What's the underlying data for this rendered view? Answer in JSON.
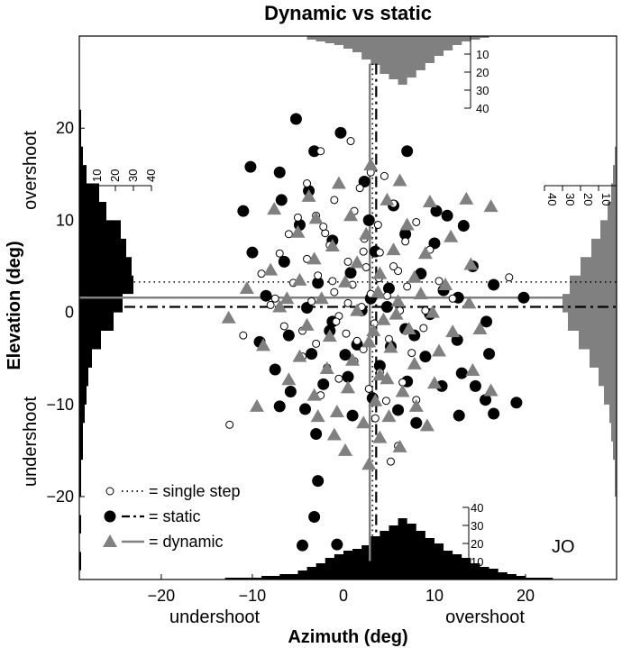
{
  "chart_data": {
    "type": "scatter",
    "title": "Dynamic vs static",
    "xlabel": "Azimuth (deg)",
    "ylabel": "Elevation (deg)",
    "x_side_labels": {
      "negative": "undershoot",
      "positive": "overshoot"
    },
    "y_side_labels": {
      "negative": "undershoot",
      "positive": "overshoot"
    },
    "xlim": [
      -29,
      30
    ],
    "ylim": [
      -29,
      30
    ],
    "x_ticks": [
      -20,
      -10,
      0,
      10,
      20
    ],
    "y_ticks": [
      -20,
      -10,
      0,
      10,
      20
    ],
    "subject_label": "JO",
    "legend": [
      {
        "marker": "open-circle",
        "line": "dotted",
        "text": "= single step"
      },
      {
        "marker": "filled-circle",
        "line": "dash-dot",
        "text": "= static"
      },
      {
        "marker": "filled-triangle",
        "line": "solid",
        "text": "= dynamic"
      }
    ],
    "colors": {
      "single_step": "#000000",
      "static": "#000000",
      "dynamic": "#808080"
    },
    "mean_lines": {
      "single_step": {
        "x": 3.2,
        "y": 3.3
      },
      "static": {
        "x": 3.6,
        "y": 0.6
      },
      "dynamic": {
        "x": 2.9,
        "y": 1.6
      }
    },
    "hist_ticks": [
      10,
      20,
      30,
      40
    ],
    "series": [
      {
        "name": "single step",
        "marker": "open-circle",
        "points": [
          [
            -2.5,
            17.5
          ],
          [
            0.8,
            18.6
          ],
          [
            3,
            15.2
          ],
          [
            4.5,
            14.8
          ],
          [
            -4,
            14
          ],
          [
            -1,
            12.2
          ],
          [
            5.5,
            11.8
          ],
          [
            1.2,
            11
          ],
          [
            -3,
            10.5
          ],
          [
            -5,
            10.3
          ],
          [
            3.8,
            9.5
          ],
          [
            8,
            9.8
          ],
          [
            -6,
            8.5
          ],
          [
            -2,
            8.6
          ],
          [
            2.3,
            8
          ],
          [
            6.8,
            7.7
          ],
          [
            -1.5,
            7.3
          ],
          [
            4,
            6.5
          ],
          [
            9.5,
            6.8
          ],
          [
            -7,
            6.4
          ],
          [
            -4,
            5.8
          ],
          [
            0.5,
            5.5
          ],
          [
            2.5,
            4.9
          ],
          [
            6,
            4.5
          ],
          [
            -9,
            4.2
          ],
          [
            -2.8,
            4
          ],
          [
            3.9,
            3.7
          ],
          [
            10.5,
            3.4
          ],
          [
            -5.5,
            3.2
          ],
          [
            1,
            3
          ],
          [
            7,
            2.8
          ],
          [
            -1,
            2.2
          ],
          [
            4.8,
            1.8
          ],
          [
            -3.5,
            1.2
          ],
          [
            12,
            1.5
          ],
          [
            -8,
            0.8
          ],
          [
            2,
            0.6
          ],
          [
            6.2,
            0.2
          ],
          [
            -0.5,
            -0.4
          ],
          [
            3.4,
            -1.2
          ],
          [
            -6.5,
            -1.5
          ],
          [
            8.8,
            -1.7
          ],
          [
            0.3,
            -2.3
          ],
          [
            -11,
            -2.5
          ],
          [
            5,
            -2.9
          ],
          [
            -3,
            -3.4
          ],
          [
            2.2,
            -4
          ],
          [
            7.5,
            -4.4
          ],
          [
            -4.5,
            -4.8
          ],
          [
            1.2,
            -5.3
          ],
          [
            -1.8,
            -6
          ],
          [
            4,
            -6.5
          ],
          [
            -0.5,
            -7.2
          ],
          [
            6.5,
            -7.6
          ],
          [
            2.8,
            -8.3
          ],
          [
            -2.5,
            -9
          ],
          [
            4.7,
            -9.6
          ],
          [
            -12.5,
            -12.2
          ],
          [
            6,
            -14.5
          ],
          [
            5.2,
            -16.2
          ],
          [
            3.5,
            -11.5
          ],
          [
            -7.5,
            1.5
          ],
          [
            9,
            0.2
          ],
          [
            -0.8,
            -1
          ],
          [
            1.5,
            -3.1
          ],
          [
            18.2,
            3.8
          ],
          [
            0.5,
            1
          ],
          [
            -1.2,
            3.4
          ],
          [
            3,
            2
          ],
          [
            5.5,
            5
          ],
          [
            2.2,
            6.6
          ],
          [
            -2.2,
            9.3
          ],
          [
            1.8,
            13.5
          ],
          [
            -4.5,
            -2
          ],
          [
            8,
            -9.5
          ]
        ]
      },
      {
        "name": "static",
        "marker": "filled-circle",
        "points": [
          [
            -5.2,
            21
          ],
          [
            -0.3,
            19.5
          ],
          [
            -3.2,
            17.5
          ],
          [
            7,
            17.5
          ],
          [
            -10.2,
            15.8
          ],
          [
            -7,
            15.2
          ],
          [
            2.3,
            14.2
          ],
          [
            -3.8,
            13.2
          ],
          [
            -11,
            11
          ],
          [
            5.5,
            11.6
          ],
          [
            11.4,
            10.5
          ],
          [
            -4.8,
            9.5
          ],
          [
            13.2,
            9.4
          ],
          [
            6.8,
            8.5
          ],
          [
            -1.2,
            7.8
          ],
          [
            10,
            7.5
          ],
          [
            -10,
            6.5
          ],
          [
            3.5,
            6.6
          ],
          [
            -6.5,
            5.5
          ],
          [
            14.2,
            5
          ],
          [
            0.8,
            4.3
          ],
          [
            8.5,
            4.2
          ],
          [
            -2.8,
            3.2
          ],
          [
            16.5,
            3
          ],
          [
            5,
            2.6
          ],
          [
            -8.5,
            1.8
          ],
          [
            12.6,
            1.6
          ],
          [
            19.8,
            1.6
          ],
          [
            -4,
            0.5
          ],
          [
            2,
            0.2
          ],
          [
            9.5,
            -0.2
          ],
          [
            -1.2,
            -1
          ],
          [
            15.7,
            -1
          ],
          [
            6.8,
            -1.8
          ],
          [
            -6,
            -2.5
          ],
          [
            12.5,
            -3
          ],
          [
            1.5,
            -3.5
          ],
          [
            -3.5,
            -4.5
          ],
          [
            9,
            -4.8
          ],
          [
            16,
            -4.5
          ],
          [
            4,
            -5.8
          ],
          [
            -7.5,
            -6.2
          ],
          [
            13,
            -6.6
          ],
          [
            0.5,
            -7
          ],
          [
            7,
            -7.5
          ],
          [
            -2.2,
            -7.8
          ],
          [
            10.8,
            -8
          ],
          [
            -5.8,
            -8.6
          ],
          [
            3.2,
            -9.3
          ],
          [
            15.6,
            -9.5
          ],
          [
            19,
            -9.8
          ],
          [
            -4.2,
            -10.5
          ],
          [
            6,
            -10.6
          ],
          [
            12.7,
            -11.2
          ],
          [
            16.5,
            -11
          ],
          [
            -2.8,
            -18.3
          ],
          [
            -3.2,
            -22.2
          ],
          [
            -0.7,
            -25.2
          ],
          [
            -4.5,
            -25.3
          ],
          [
            8,
            -12
          ],
          [
            1,
            -11.2
          ],
          [
            -1.5,
            -2
          ],
          [
            4.8,
            0.6
          ],
          [
            11,
            2.4
          ],
          [
            -9.2,
            -3.2
          ],
          [
            2.8,
            10
          ],
          [
            7.8,
            -2.5
          ],
          [
            -6.8,
            12.2
          ],
          [
            5.2,
            -3.7
          ],
          [
            10.2,
            11
          ],
          [
            -3,
            -13.2
          ],
          [
            3,
            1.5
          ],
          [
            14.5,
            -8
          ],
          [
            0.2,
            -4.6
          ],
          [
            -7,
            -10.2
          ]
        ]
      },
      {
        "name": "dynamic",
        "marker": "filled-triangle",
        "points": [
          [
            3,
            16
          ],
          [
            -0.5,
            14
          ],
          [
            6.2,
            14.3
          ],
          [
            -3.8,
            12.6
          ],
          [
            4.8,
            12.2
          ],
          [
            9.5,
            12
          ],
          [
            13.5,
            12.3
          ],
          [
            16.2,
            11.5
          ],
          [
            -7.6,
            11.2
          ],
          [
            0.8,
            10.5
          ],
          [
            7,
            9.5
          ],
          [
            -5,
            8.7
          ],
          [
            2.5,
            8.5
          ],
          [
            11.8,
            8.2
          ],
          [
            -1.2,
            7.2
          ],
          [
            5.5,
            6.8
          ],
          [
            9,
            6.4
          ],
          [
            -3.2,
            5.8
          ],
          [
            1.5,
            5.4
          ],
          [
            14,
            5.2
          ],
          [
            -8,
            4.6
          ],
          [
            4,
            4.2
          ],
          [
            7.8,
            3.8
          ],
          [
            -4.8,
            3.5
          ],
          [
            0.2,
            3.3
          ],
          [
            11.2,
            3
          ],
          [
            -10.6,
            2.6
          ],
          [
            3.8,
            2.2
          ],
          [
            8.5,
            2
          ],
          [
            -2.4,
            1.5
          ],
          [
            6,
            1.2
          ],
          [
            13.8,
            1
          ],
          [
            -7,
            0.6
          ],
          [
            1.5,
            0.2
          ],
          [
            9.8,
            0
          ],
          [
            -12.6,
            -0.6
          ],
          [
            4.4,
            -0.8
          ],
          [
            -4,
            -1.4
          ],
          [
            7.2,
            -1.8
          ],
          [
            12,
            -2.1
          ],
          [
            -1.5,
            -2.6
          ],
          [
            2.8,
            -3.2
          ],
          [
            -8.8,
            -3.6
          ],
          [
            5.2,
            -3.8
          ],
          [
            10.5,
            -4.2
          ],
          [
            -4.8,
            -4.8
          ],
          [
            1,
            -5.2
          ],
          [
            7.8,
            -5.6
          ],
          [
            -1.8,
            -6.1
          ],
          [
            14.2,
            -6.3
          ],
          [
            4,
            -6.8
          ],
          [
            -6,
            -7.3
          ],
          [
            10,
            -7.7
          ],
          [
            0.5,
            -8.2
          ],
          [
            6.5,
            -8.6
          ],
          [
            -3.2,
            -9
          ],
          [
            3.5,
            -9.6
          ],
          [
            8,
            -10.2
          ],
          [
            -0.7,
            -10.8
          ],
          [
            5,
            -11.3
          ],
          [
            2.2,
            -12
          ],
          [
            -1,
            -13.3
          ],
          [
            4,
            -13.6
          ],
          [
            6.2,
            -14.6
          ],
          [
            0.2,
            -15
          ],
          [
            2.8,
            -16.5
          ],
          [
            4.8,
            -7.2
          ],
          [
            -2.8,
            -11.3
          ],
          [
            -9.5,
            -10.2
          ],
          [
            9.2,
            -12.3
          ],
          [
            15,
            -1.8
          ],
          [
            16.2,
            -8.5
          ],
          [
            -3,
            10.2
          ],
          [
            -6.2,
            1.5
          ],
          [
            3.3,
            -2
          ],
          [
            5.8,
            -0.2
          ]
        ]
      }
    ],
    "histograms": {
      "azimuth_static": {
        "bin_edges": [
          -13,
          -12,
          -11,
          -10,
          -9,
          -8,
          -7,
          -6,
          -5,
          -4,
          -3,
          -2,
          -1,
          0,
          1,
          2,
          3,
          4,
          5,
          6,
          7,
          8,
          9,
          10,
          11,
          12,
          13,
          14,
          15,
          16,
          17,
          18,
          19,
          20,
          21,
          22,
          23
        ],
        "counts": [
          1,
          1,
          1,
          1,
          2,
          2,
          3,
          3,
          5,
          7,
          9,
          12,
          14,
          16,
          17,
          19,
          24,
          27,
          30,
          34,
          31,
          27,
          23,
          20,
          16,
          14,
          12,
          9,
          7,
          6,
          4,
          3,
          2,
          1,
          1,
          1
        ]
      },
      "azimuth_dynamic": {
        "bin_edges": [
          -4,
          -3,
          -2,
          -1,
          0,
          1,
          2,
          3,
          4,
          5,
          6,
          7,
          8,
          9,
          10,
          11,
          12,
          13,
          14,
          15,
          16
        ],
        "counts": [
          2,
          3,
          4,
          5,
          7,
          9,
          13,
          16,
          21,
          24,
          27,
          23,
          19,
          15,
          11,
          8,
          5,
          3,
          2,
          1
        ]
      },
      "elevation_static": {
        "bin_edges": [
          -28,
          -26,
          -24,
          -22,
          -20,
          -18,
          -16,
          -14,
          -12,
          -10,
          -8,
          -6,
          -4,
          -2,
          0,
          2,
          4,
          6,
          8,
          10,
          12,
          14,
          16,
          18,
          20,
          22
        ],
        "counts": [
          1,
          0,
          1,
          0,
          1,
          1,
          2,
          2,
          3,
          4,
          5,
          7,
          12,
          19,
          24,
          30,
          29,
          26,
          23,
          15,
          11,
          4,
          2,
          1,
          1
        ]
      },
      "elevation_dynamic": {
        "bin_edges": [
          -20,
          -18,
          -16,
          -14,
          -12,
          -10,
          -8,
          -6,
          -4,
          -2,
          0,
          2,
          4,
          6,
          8,
          10,
          12,
          14,
          16,
          18
        ],
        "counts": [
          1,
          1,
          2,
          3,
          4,
          7,
          10,
          15,
          21,
          27,
          30,
          26,
          20,
          14,
          9,
          5,
          3,
          2,
          1
        ]
      }
    }
  }
}
